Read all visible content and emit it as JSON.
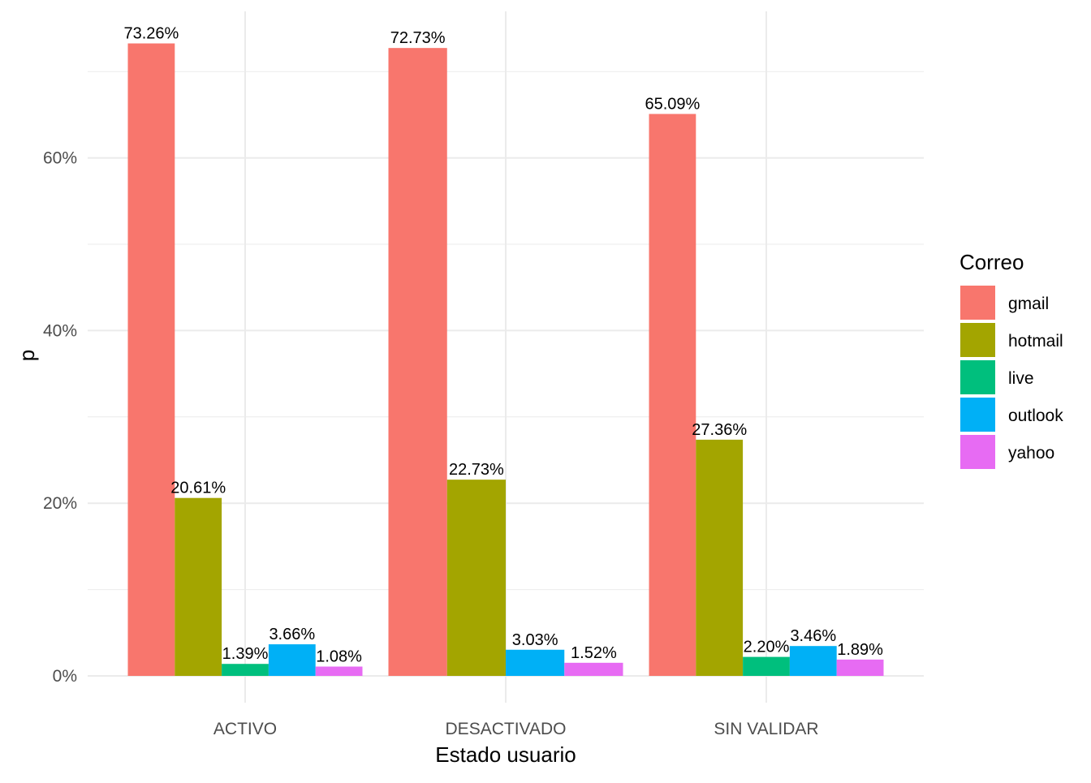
{
  "chart_data": {
    "type": "bar",
    "xlabel": "Estado usuario",
    "ylabel": "p",
    "ylim": [
      0,
      75
    ],
    "y_ticks": [
      {
        "value": 0,
        "label": "0%"
      },
      {
        "value": 20,
        "label": "20%"
      },
      {
        "value": 40,
        "label": "40%"
      },
      {
        "value": 60,
        "label": "60%"
      }
    ],
    "grid": true,
    "legend": {
      "title": "Correo",
      "placement": "right",
      "entries": [
        {
          "name": "gmail",
          "color": "#F8766D"
        },
        {
          "name": "hotmail",
          "color": "#A3A500"
        },
        {
          "name": "live",
          "color": "#00BF7D"
        },
        {
          "name": "outlook",
          "color": "#00B0F6"
        },
        {
          "name": "yahoo",
          "color": "#E76BF3"
        }
      ]
    },
    "groups": [
      {
        "category": "ACTIVO",
        "bars": [
          {
            "series": "gmail",
            "value": 73.26,
            "label": "73.26%"
          },
          {
            "series": "hotmail",
            "value": 20.61,
            "label": "20.61%"
          },
          {
            "series": "live",
            "value": 1.39,
            "label": "1.39%"
          },
          {
            "series": "outlook",
            "value": 3.66,
            "label": "3.66%"
          },
          {
            "series": "yahoo",
            "value": 1.08,
            "label": "1.08%"
          }
        ]
      },
      {
        "category": "DESACTIVADO",
        "bars": [
          {
            "series": "gmail",
            "value": 72.73,
            "label": "72.73%"
          },
          {
            "series": "hotmail",
            "value": 22.73,
            "label": "22.73%"
          },
          {
            "series": "outlook",
            "value": 3.03,
            "label": "3.03%"
          },
          {
            "series": "yahoo",
            "value": 1.52,
            "label": "1.52%"
          }
        ]
      },
      {
        "category": "SIN VALIDAR",
        "bars": [
          {
            "series": "gmail",
            "value": 65.09,
            "label": "65.09%"
          },
          {
            "series": "hotmail",
            "value": 27.36,
            "label": "27.36%"
          },
          {
            "series": "live",
            "value": 2.2,
            "label": "2.20%"
          },
          {
            "series": "outlook",
            "value": 3.46,
            "label": "3.46%"
          },
          {
            "series": "yahoo",
            "value": 1.89,
            "label": "1.89%"
          }
        ]
      }
    ]
  }
}
